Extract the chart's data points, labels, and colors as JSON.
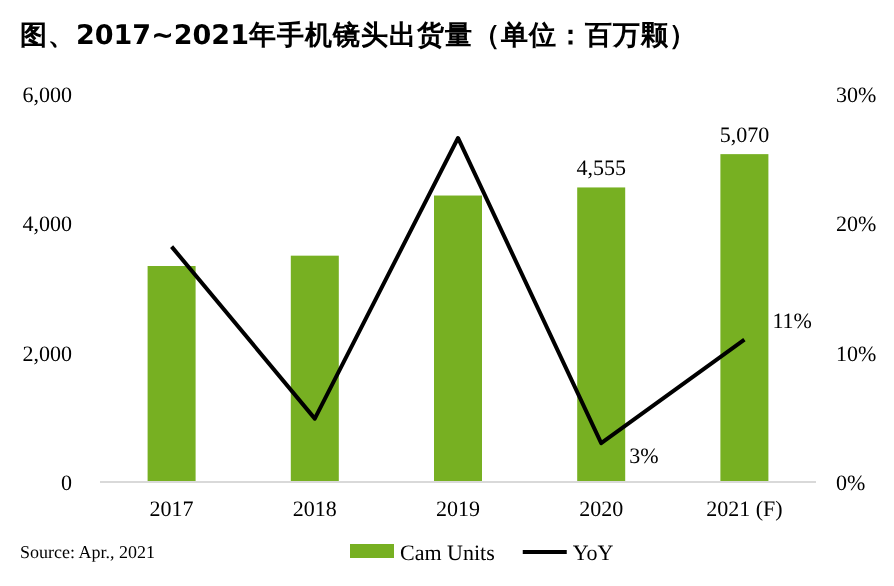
{
  "chart_data": {
    "type": "bar",
    "title": "图、2017~2021年手机镜头出货量（单位：百万颗）",
    "categories": [
      "2017",
      "2018",
      "2019",
      "2020",
      "2021 (F)"
    ],
    "series": [
      {
        "name": "Cam Units",
        "color": "#77b022",
        "values": [
          3340,
          3500,
          4430,
          4555,
          5070
        ],
        "value_labels": [
          null,
          null,
          null,
          "4,555",
          "5,070"
        ]
      },
      {
        "name": "YoY",
        "type": "line",
        "axis": "y2",
        "color": "#000000",
        "values": [
          18.2,
          4.9,
          26.6,
          3,
          11
        ],
        "value_labels": [
          null,
          null,
          null,
          "3%",
          "11%"
        ]
      }
    ],
    "ylim": [
      0,
      6000
    ],
    "yticks": [
      {
        "value": 0,
        "label": "0"
      },
      {
        "value": 2000,
        "label": "2,000"
      },
      {
        "value": 4000,
        "label": "4,000"
      },
      {
        "value": 6000,
        "label": "6,000"
      }
    ],
    "y2lim": [
      0,
      30
    ],
    "y2ticks": [
      {
        "value": 0,
        "label": "0%"
      },
      {
        "value": 10,
        "label": "10%"
      },
      {
        "value": 20,
        "label": "20%"
      },
      {
        "value": 30,
        "label": "30%"
      }
    ],
    "legend": "bottom",
    "marker": "none",
    "annotations": [
      "Source: Apr., 2021"
    ]
  }
}
